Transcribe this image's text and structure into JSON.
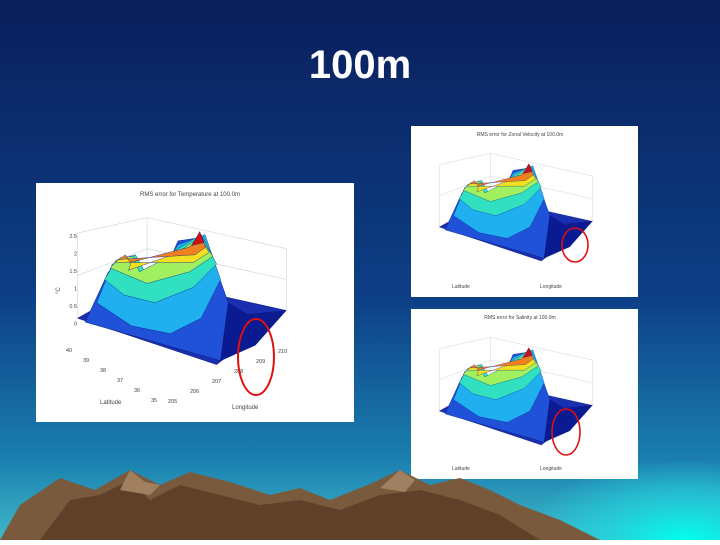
{
  "title": "100m",
  "figures": [
    {
      "title": "RMS error for Temperature at 100.0m",
      "z_label": "°C",
      "x_label": "Longitude",
      "y_label": "Latitude",
      "z_ticks": [
        "2.5",
        "2",
        "1.5",
        "1",
        "0.5",
        "0"
      ],
      "lat_ticks": [
        "40",
        "39",
        "38",
        "37",
        "36",
        "35"
      ],
      "lon_ticks": [
        "205",
        "206",
        "207",
        "208",
        "209",
        "210"
      ]
    },
    {
      "title": "RMS error for Zonal Velocity at 100.0m",
      "x_label": "Longitude",
      "y_label": "Latitude"
    },
    {
      "title": "RMS error for Salinity at 100.0m",
      "x_label": "Longitude",
      "y_label": "Latitude"
    }
  ]
}
